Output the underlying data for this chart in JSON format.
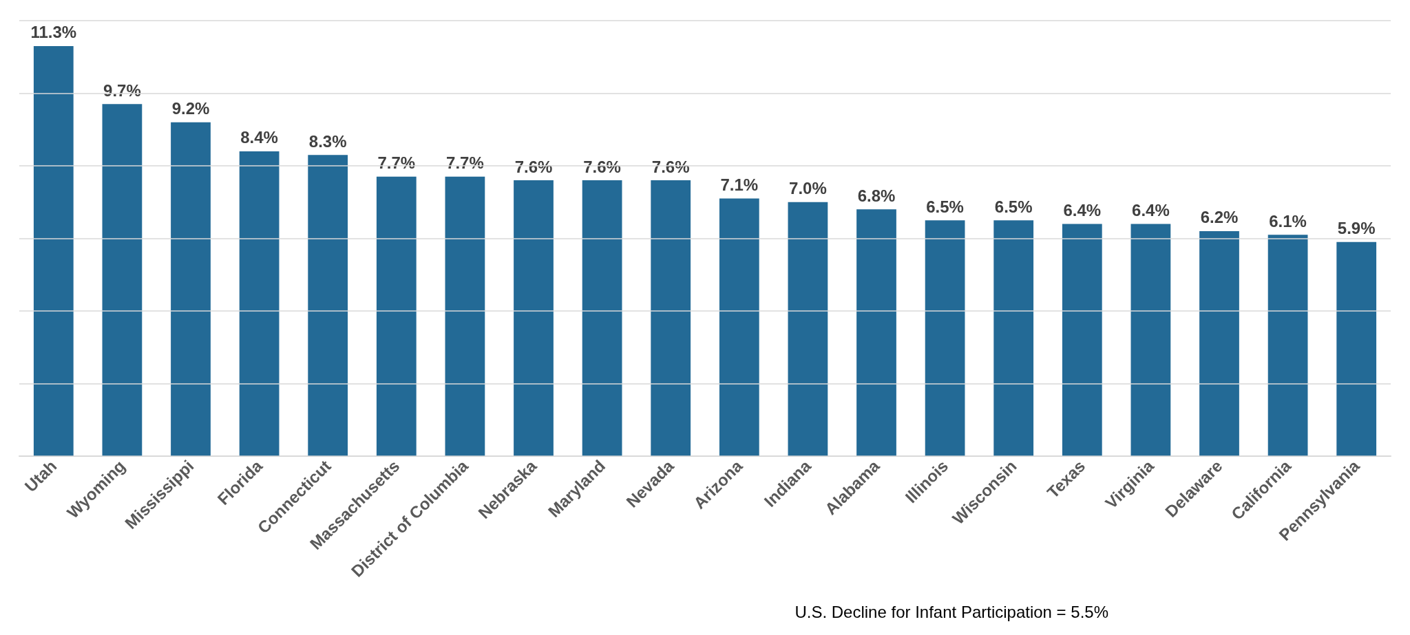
{
  "chart_data": {
    "type": "bar",
    "categories": [
      "Utah",
      "Wyoming",
      "Mississippi",
      "Florida",
      "Connecticut",
      "Massachusetts",
      "District of Columbia",
      "Nebraska",
      "Maryland",
      "Nevada",
      "Arizona",
      "Indiana",
      "Alabama",
      "Illinois",
      "Wisconsin",
      "Texas",
      "Virginia",
      "Delaware",
      "California",
      "Pennsylvania"
    ],
    "values": [
      11.3,
      9.7,
      9.2,
      8.4,
      8.3,
      7.7,
      7.7,
      7.6,
      7.6,
      7.6,
      7.1,
      7.0,
      6.8,
      6.5,
      6.5,
      6.4,
      6.4,
      6.2,
      6.1,
      5.9
    ],
    "value_labels": [
      "11.3%",
      "9.7%",
      "9.2%",
      "8.4%",
      "8.3%",
      "7.7%",
      "7.7%",
      "7.6%",
      "7.6%",
      "7.6%",
      "7.1%",
      "7.0%",
      "6.8%",
      "6.5%",
      "6.5%",
      "6.4%",
      "6.4%",
      "6.2%",
      "6.1%",
      "5.9%"
    ],
    "color": "#236a96",
    "ylim": [
      0,
      12
    ],
    "yticks": [
      {
        "value": 0,
        "label": null
      },
      {
        "value": 2,
        "label": null
      },
      {
        "value": 4,
        "label": null
      },
      {
        "value": 6,
        "label": null
      },
      {
        "value": 8,
        "label": null
      },
      {
        "value": 10,
        "label": null
      },
      {
        "value": 12,
        "label": null
      }
    ],
    "grid": true,
    "tick_labels": "x",
    "annotations": [
      "U.S. Decline for Infant Participation = 5.5%"
    ]
  }
}
